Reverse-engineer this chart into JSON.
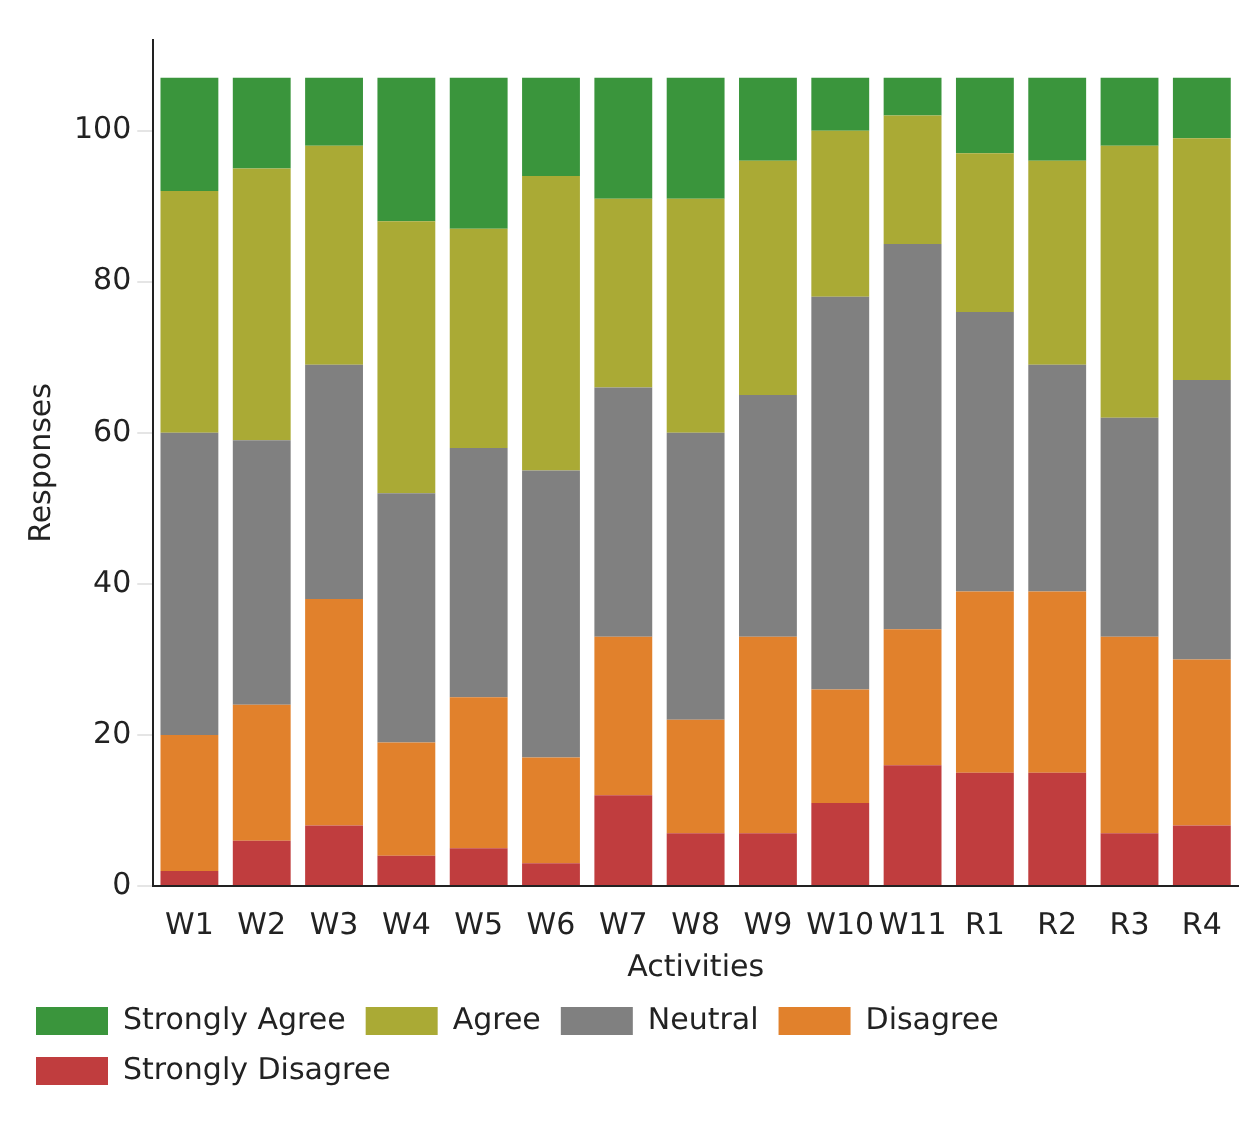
{
  "chart_data": {
    "type": "bar",
    "stacked": true,
    "xlabel": "Activities",
    "ylabel": "Responses",
    "categories": [
      "W1",
      "W2",
      "W3",
      "W4",
      "W5",
      "W6",
      "W7",
      "W8",
      "W9",
      "W10",
      "W11",
      "R1",
      "R2",
      "R3",
      "R4"
    ],
    "series": [
      {
        "name": "Strongly Disagree",
        "color": "#c03d3e",
        "values": [
          2,
          6,
          8,
          4,
          5,
          3,
          12,
          7,
          7,
          11,
          16,
          15,
          15,
          7,
          8
        ]
      },
      {
        "name": "Disagree",
        "color": "#e1812c",
        "values": [
          18,
          18,
          30,
          15,
          20,
          14,
          21,
          15,
          26,
          15,
          18,
          24,
          24,
          26,
          22
        ]
      },
      {
        "name": "Neutral",
        "color": "#808080",
        "values": [
          40,
          35,
          31,
          33,
          33,
          38,
          33,
          38,
          32,
          52,
          51,
          37,
          30,
          29,
          37
        ]
      },
      {
        "name": "Agree",
        "color": "#aaaa35",
        "values": [
          32,
          36,
          29,
          36,
          29,
          39,
          25,
          31,
          31,
          22,
          17,
          21,
          27,
          36,
          32
        ]
      },
      {
        "name": "Strongly Agree",
        "color": "#3a953c",
        "values": [
          15,
          12,
          9,
          19,
          20,
          13,
          16,
          16,
          11,
          7,
          5,
          10,
          11,
          9,
          8
        ]
      }
    ],
    "ylim": [
      0,
      112
    ],
    "yticks": [
      0,
      20,
      40,
      60,
      80,
      100
    ],
    "grid": false,
    "legend": "bottom left"
  }
}
